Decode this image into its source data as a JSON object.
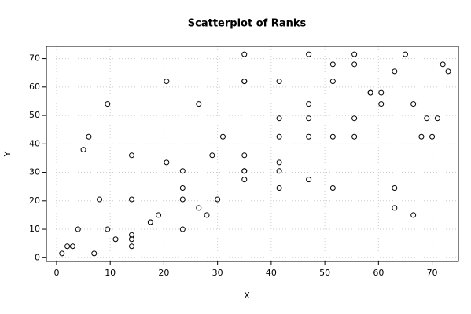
{
  "chart_data": {
    "type": "scatter",
    "title": "Scatterplot of Ranks",
    "x_label": "X",
    "y_label": "Y",
    "x": [
      1,
      2,
      3,
      4,
      5,
      6,
      7,
      8,
      9.5,
      9.5,
      11,
      14,
      14,
      14,
      14,
      14,
      17.5,
      17.5,
      19,
      20.5,
      20.5,
      23.5,
      23.5,
      23.5,
      23.5,
      26.5,
      26.5,
      28,
      29,
      30,
      31,
      35,
      35,
      35,
      35,
      35,
      35,
      35,
      41.5,
      41.5,
      41.5,
      41.5,
      41.5,
      41.5,
      47,
      47,
      47,
      47,
      47,
      51.5,
      51.5,
      51.5,
      51.5,
      55.5,
      55.5,
      55.5,
      55.5,
      58.5,
      58.5,
      60.5,
      60.5,
      63,
      63,
      63,
      65,
      66.5,
      66.5,
      68,
      69,
      70,
      71,
      72,
      73
    ],
    "y": [
      1.5,
      4,
      4,
      10,
      38,
      42.5,
      1.5,
      20.5,
      10,
      54,
      6.5,
      4,
      6.5,
      8,
      20.5,
      36,
      12.5,
      12.5,
      15,
      33.5,
      62,
      10,
      20.5,
      24.5,
      30.5,
      17.5,
      54,
      15,
      36,
      20.5,
      42.5,
      27.5,
      30.5,
      30.5,
      36,
      62,
      62,
      71.5,
      24.5,
      30.5,
      33.5,
      42.5,
      49,
      62,
      27.5,
      42.5,
      49,
      54,
      71.5,
      24.5,
      42.5,
      62,
      68,
      42.5,
      49,
      68,
      71.5,
      58,
      58,
      54,
      58,
      17.5,
      24.5,
      65.5,
      71.5,
      15,
      54,
      42.5,
      49,
      42.5,
      49,
      68,
      65.5
    ],
    "color": "#000000",
    "xlim": [
      -1.9,
      74.9
    ],
    "ylim": [
      -1.3,
      74.3
    ],
    "xticks": [
      0,
      10,
      20,
      30,
      40,
      50,
      60,
      70
    ],
    "yticks": [
      0,
      10,
      20,
      30,
      40,
      50,
      60,
      70
    ],
    "grid": true
  }
}
